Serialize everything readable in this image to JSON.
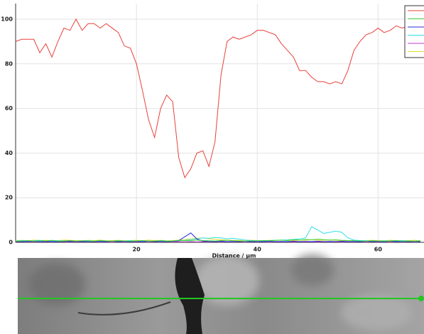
{
  "chart_data": {
    "type": "line",
    "x_label": "Distance / µm",
    "x": [
      0,
      1,
      2,
      3,
      4,
      5,
      6,
      7,
      8,
      9,
      10,
      11,
      12,
      13,
      14,
      15,
      16,
      17,
      18,
      19,
      20,
      21,
      22,
      23,
      24,
      25,
      26,
      27,
      28,
      29,
      30,
      31,
      32,
      33,
      34,
      35,
      36,
      37,
      38,
      39,
      40,
      41,
      42,
      43,
      44,
      45,
      46,
      47,
      48,
      49,
      50,
      51,
      52,
      53,
      54,
      55,
      56,
      57,
      58,
      59,
      60,
      61,
      62,
      63,
      64,
      65,
      66,
      67
    ],
    "xlim": [
      0,
      67.6
    ],
    "xticks": [
      20,
      40,
      60
    ],
    "ylim": [
      0,
      107
    ],
    "yticks": [
      0,
      20,
      40,
      60,
      80,
      100
    ],
    "grid": true,
    "legend": "upper right",
    "series": [
      {
        "color": "#e8403a",
        "values": [
          90,
          91,
          91,
          91,
          85,
          89,
          83,
          90,
          96,
          95,
          100,
          95,
          98,
          98,
          96,
          98,
          96,
          94,
          88,
          87,
          80,
          68,
          55,
          47,
          60,
          66,
          63,
          38,
          29,
          33,
          40,
          41,
          34,
          45,
          75,
          90,
          92,
          91,
          92,
          93,
          95,
          95,
          94,
          93,
          89,
          86,
          83,
          77,
          77,
          74,
          72,
          72,
          71,
          72,
          71,
          77,
          86,
          90,
          93,
          94,
          96,
          94,
          95,
          97,
          96,
          97,
          97,
          97
        ]
      },
      {
        "color": "#3ad13a",
        "values": [
          0.5,
          0.6,
          0.8,
          0.5,
          0.7,
          0.6,
          0.9,
          0.5,
          0.6,
          0.8,
          0.5,
          0.7,
          0.6,
          0.5,
          0.8,
          0.6,
          0.5,
          0.7,
          0.6,
          0.5,
          0.6,
          0.8,
          0.5,
          0.6,
          0.7,
          0.5,
          0.6,
          0.9,
          0.7,
          0.8,
          1.0,
          0.8,
          0.7,
          0.6,
          0.8,
          0.9,
          0.7,
          0.6,
          0.5,
          0.7,
          0.6,
          0.8,
          0.7,
          0.9,
          1.0,
          0.8,
          1.2,
          1.0,
          1.3,
          1.1,
          1.4,
          1.2,
          1.0,
          1.1,
          0.9,
          0.8,
          0.7,
          0.6,
          0.5,
          0.7,
          0.6,
          0.5,
          0.6,
          0.8,
          0.5,
          0.6,
          0.5,
          0.6
        ]
      },
      {
        "color": "#2a2ad8",
        "values": [
          0.3,
          0.4,
          0.3,
          0.5,
          0.3,
          0.4,
          0.3,
          0.4,
          0.3,
          0.5,
          0.3,
          0.4,
          0.3,
          0.3,
          0.4,
          0.3,
          0.5,
          0.3,
          0.4,
          0.3,
          0.4,
          0.3,
          0.5,
          0.3,
          0.4,
          0.3,
          0.4,
          0.8,
          2.5,
          4.2,
          1.5,
          0.6,
          0.4,
          0.3,
          0.5,
          0.3,
          0.4,
          0.3,
          0.5,
          0.3,
          0.4,
          0.3,
          0.5,
          0.3,
          0.4,
          0.3,
          0.5,
          0.3,
          0.4,
          0.3,
          0.5,
          0.3,
          0.4,
          0.3,
          0.5,
          0.3,
          0.4,
          0.3,
          0.5,
          0.3,
          0.4,
          0.3,
          0.5,
          0.3,
          0.4,
          0.3,
          0.4,
          0.3
        ]
      },
      {
        "color": "#2fe0e8",
        "values": [
          0.6,
          0.8,
          0.5,
          0.7,
          0.9,
          0.6,
          0.5,
          0.8,
          0.6,
          0.7,
          0.5,
          0.6,
          0.8,
          0.5,
          0.7,
          0.6,
          0.5,
          0.7,
          0.6,
          0.8,
          0.5,
          0.7,
          0.6,
          0.5,
          0.8,
          0.6,
          0.5,
          0.7,
          0.9,
          1.2,
          1.5,
          2.0,
          1.8,
          2.2,
          2.0,
          1.6,
          1.8,
          1.4,
          1.0,
          0.8,
          0.7,
          0.6,
          0.8,
          0.9,
          1.0,
          1.1,
          1.3,
          1.5,
          2.0,
          7.0,
          5.5,
          4.0,
          4.5,
          5.0,
          4.5,
          2.0,
          1.0,
          0.8,
          0.7,
          0.6,
          0.5,
          0.7,
          0.6,
          0.5,
          0.8,
          0.6,
          0.5,
          0.7
        ]
      },
      {
        "color": "#c23ad0",
        "values": [
          0.2,
          0.3,
          0.2,
          0.3,
          0.2,
          0.3,
          0.2,
          0.3,
          0.2,
          0.3,
          0.2,
          0.3,
          0.2,
          0.3,
          0.2,
          0.3,
          0.2,
          0.3,
          0.2,
          0.3,
          0.2,
          0.3,
          0.2,
          0.3,
          0.2,
          0.3,
          0.2,
          0.3,
          0.2,
          0.3,
          0.2,
          0.3,
          0.2,
          0.3,
          0.2,
          0.3,
          0.2,
          0.3,
          0.2,
          0.3,
          0.2,
          0.3,
          0.2,
          0.3,
          0.2,
          0.3,
          0.2,
          0.3,
          0.2,
          0.3,
          0.2,
          0.3,
          0.2,
          0.3,
          0.2,
          0.3,
          0.2,
          0.3,
          0.2,
          0.3,
          0.2,
          0.3,
          0.2,
          0.3,
          0.2,
          0.3,
          0.2,
          0.3
        ]
      },
      {
        "color": "#e8d82a",
        "values": [
          0.8,
          0.9,
          0.7,
          1.0,
          0.8,
          0.9,
          0.7,
          0.8,
          1.0,
          0.9,
          0.8,
          0.7,
          0.9,
          0.8,
          1.0,
          0.7,
          0.8,
          0.9,
          0.7,
          0.8,
          0.9,
          0.7,
          1.0,
          0.8,
          0.9,
          0.7,
          0.8,
          1.0,
          1.2,
          1.5,
          1.8,
          2.0,
          1.6,
          1.4,
          1.2,
          1.0,
          0.9,
          0.8,
          1.0,
          0.9,
          0.8,
          0.7,
          0.9,
          0.8,
          1.0,
          0.9,
          0.8,
          1.0,
          0.9,
          1.2,
          1.0,
          0.9,
          1.1,
          0.9,
          0.8,
          0.7,
          0.9,
          0.8,
          0.7,
          0.9,
          0.8,
          0.7,
          0.9,
          0.8,
          0.7,
          0.8,
          0.9,
          0.8
        ]
      }
    ]
  }
}
